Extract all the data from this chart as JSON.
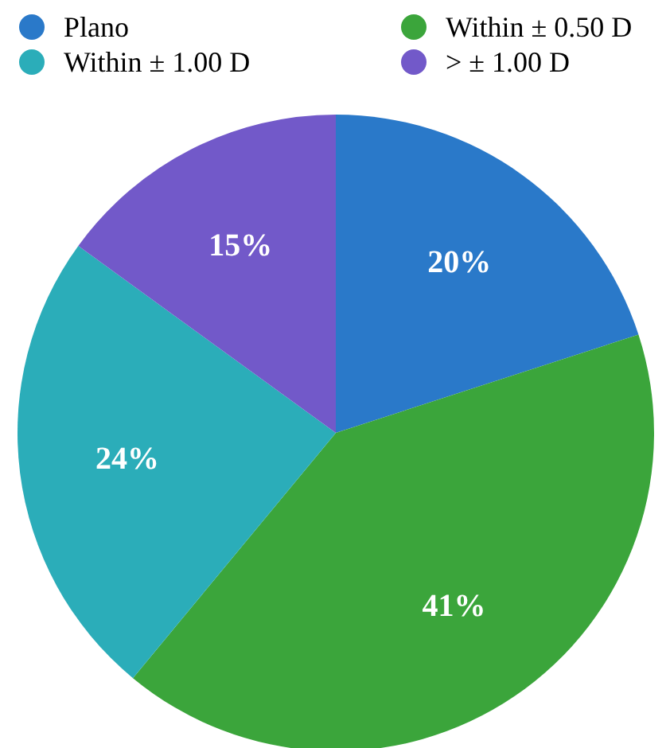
{
  "chart_data": {
    "type": "pie",
    "categories": [
      "Plano",
      "Within ± 0.50 D",
      "Within ± 1.00 D",
      "> ± 1.00 D"
    ],
    "values": [
      20,
      41,
      24,
      15
    ],
    "colors": [
      "#2a79c9",
      "#3ba53b",
      "#2badb9",
      "#7259c9"
    ],
    "value_labels": [
      "20%",
      "41%",
      "24%",
      "15%"
    ],
    "legend": "top"
  }
}
